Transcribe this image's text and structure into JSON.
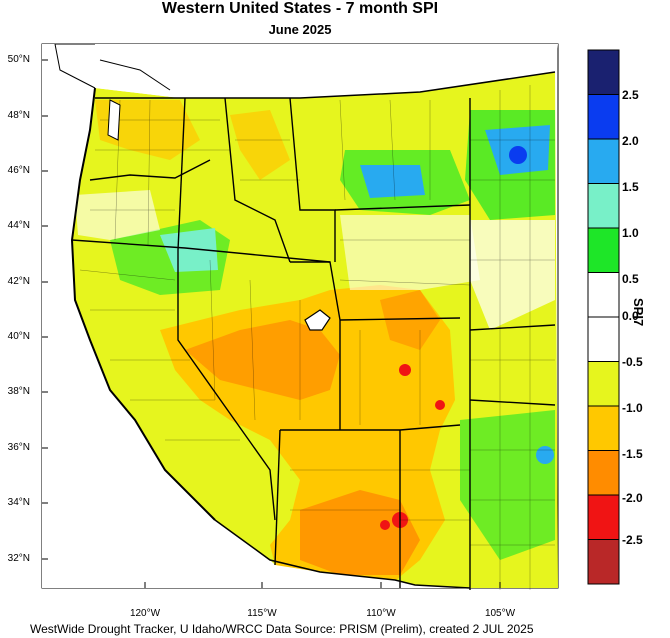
{
  "title": "Western United States - 7 month SPI",
  "subtitle": "June 2025",
  "footer": "WestWide Drought Tracker, U Idaho/WRCC Data Source: PRISM (Prelim), created  2 JUL 2025",
  "lat_labels": [
    "50°N",
    "48°N",
    "46°N",
    "44°N",
    "42°N",
    "40°N",
    "38°N",
    "36°N",
    "34°N",
    "32°N"
  ],
  "lon_labels": [
    "120°W",
    "115°W",
    "110°W",
    "105°W"
  ],
  "colorbar": {
    "title": "SPI7",
    "labels": [
      "2.5",
      "2.0",
      "1.5",
      "1.0",
      "0.5",
      "0.0",
      "-0.5",
      "-1.0",
      "-1.5",
      "-2.0",
      "-2.5"
    ],
    "colors": [
      "#1a2170",
      "#0a3cf0",
      "#28aaf0",
      "#78f0c8",
      "#1ee628",
      "#ffffff",
      "#ffffff",
      "#e6f51e",
      "#ffc800",
      "#ff8c00",
      "#f01414",
      "#b92828"
    ]
  }
}
